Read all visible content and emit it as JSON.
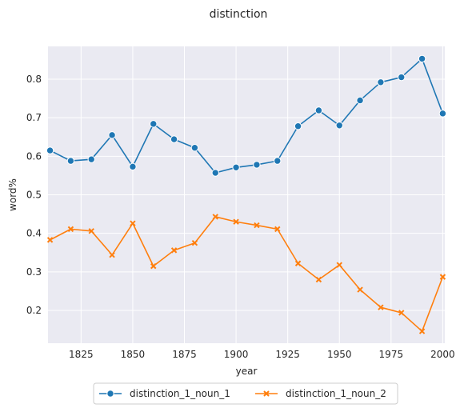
{
  "chart_data": {
    "type": "line",
    "title": "distinction",
    "xlabel": "year",
    "ylabel": "word%",
    "xlim": [
      1809,
      2001
    ],
    "ylim": [
      0.115,
      0.885
    ],
    "x_ticks": [
      1825,
      1850,
      1875,
      1900,
      1925,
      1950,
      1975,
      2000
    ],
    "y_ticks": [
      0.2,
      0.3,
      0.4,
      0.5,
      0.6,
      0.7,
      0.8
    ],
    "grid": true,
    "legend_position": "bottom-center",
    "x": [
      1810,
      1820,
      1830,
      1840,
      1850,
      1860,
      1870,
      1880,
      1890,
      1900,
      1910,
      1920,
      1930,
      1940,
      1950,
      1960,
      1970,
      1980,
      1990,
      2000
    ],
    "series": [
      {
        "name": "distinction_1_noun_1",
        "color": "#1f77b4",
        "marker": "circle",
        "values": [
          0.615,
          0.588,
          0.592,
          0.655,
          0.573,
          0.684,
          0.644,
          0.622,
          0.557,
          0.571,
          0.578,
          0.588,
          0.678,
          0.719,
          0.68,
          0.745,
          0.792,
          0.805,
          0.853,
          0.711
        ]
      },
      {
        "name": "distinction_1_noun_2",
        "color": "#ff7f0e",
        "marker": "x",
        "values": [
          0.383,
          0.411,
          0.406,
          0.344,
          0.426,
          0.315,
          0.356,
          0.375,
          0.443,
          0.43,
          0.421,
          0.411,
          0.322,
          0.28,
          0.318,
          0.254,
          0.208,
          0.194,
          0.146,
          0.287
        ]
      }
    ]
  }
}
